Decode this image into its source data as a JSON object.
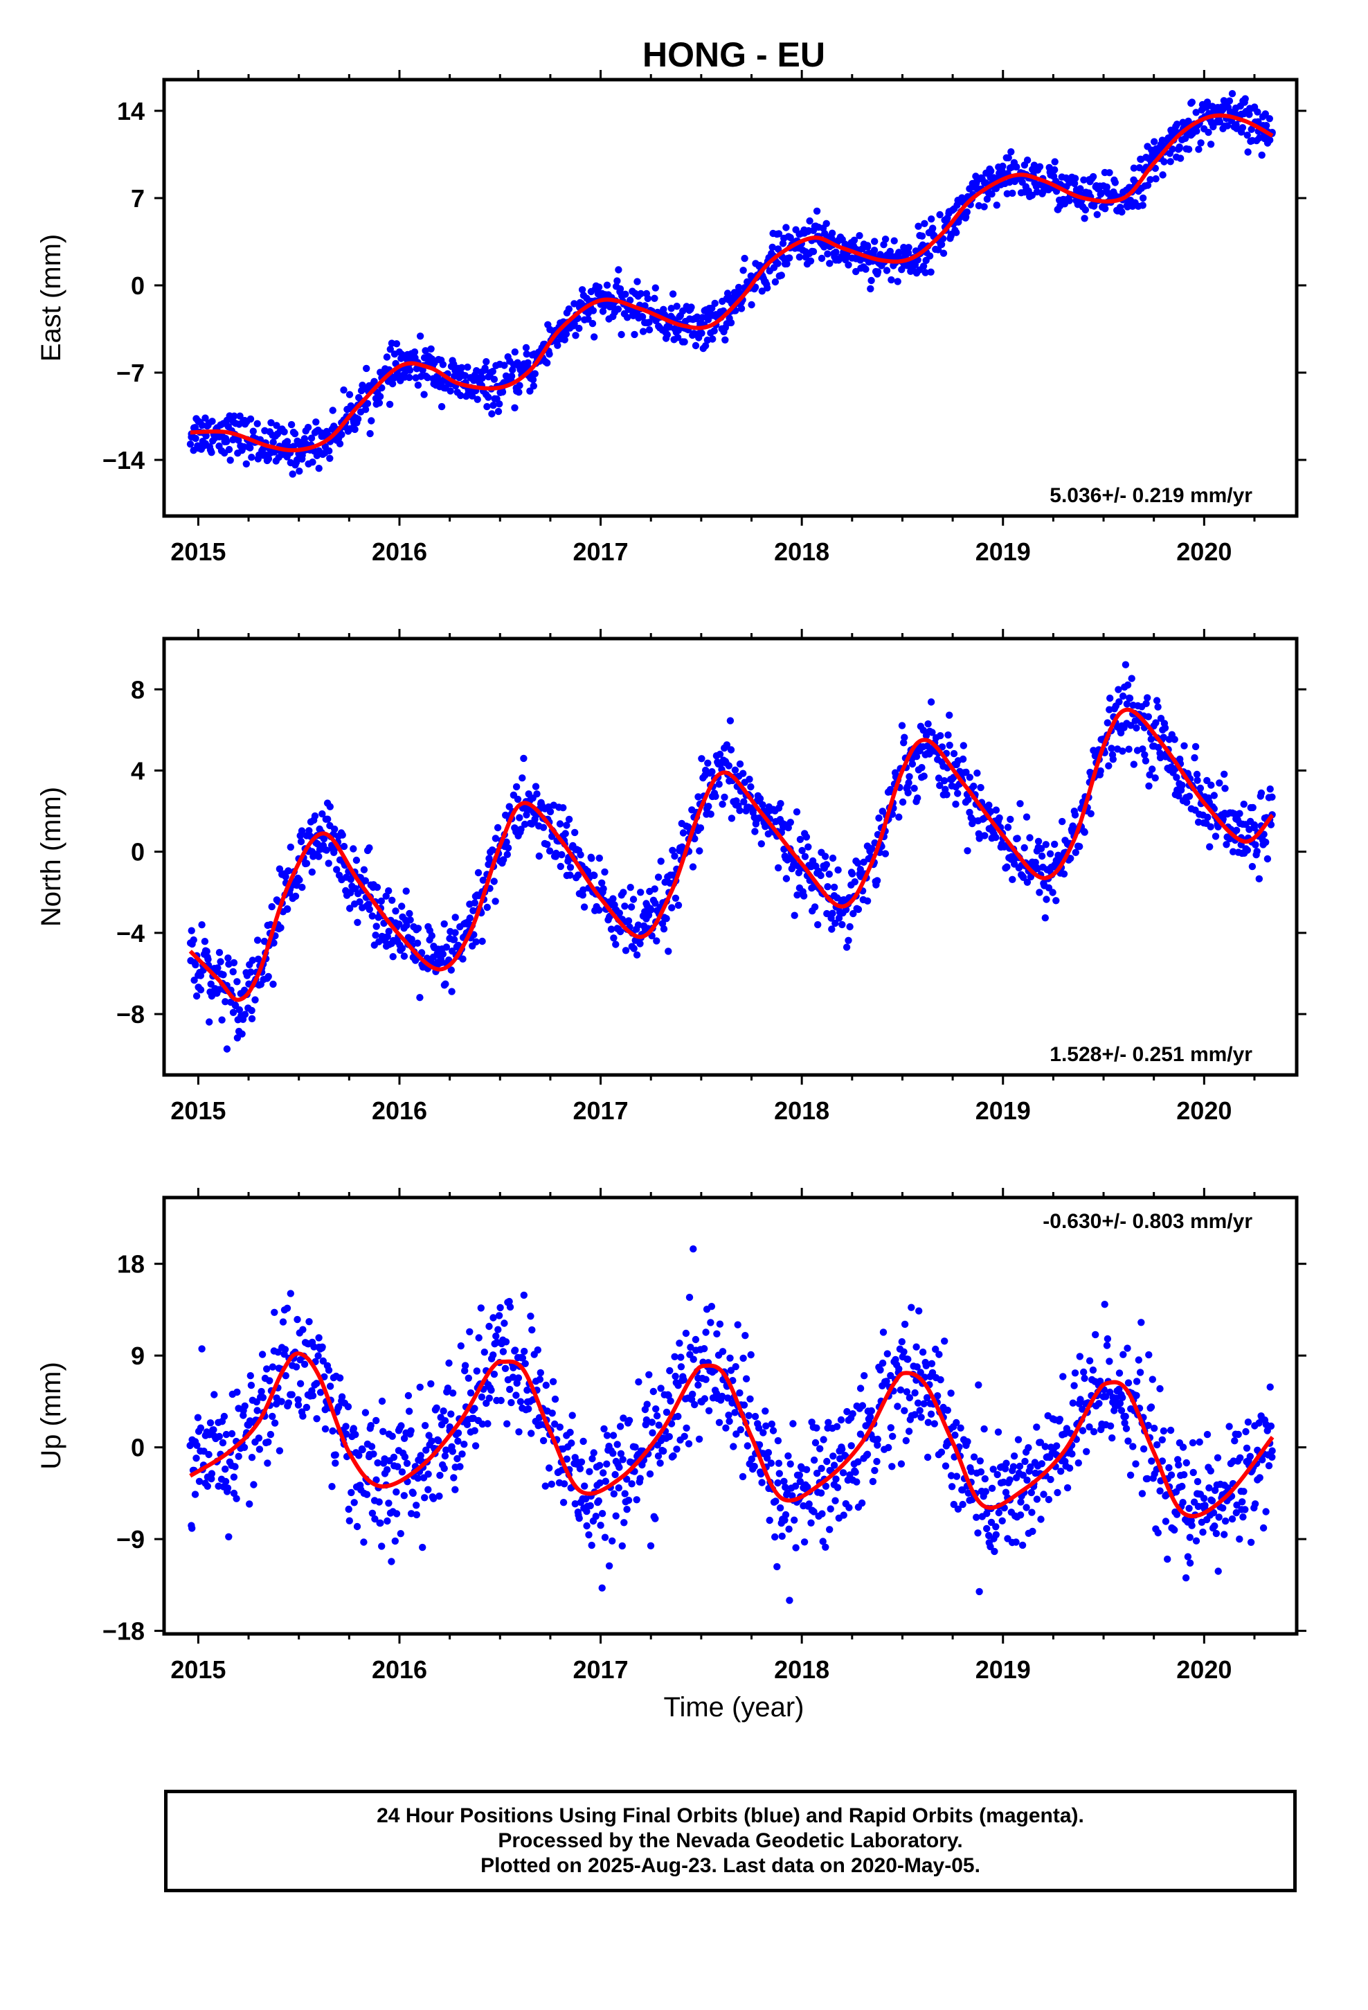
{
  "title": "HONG - EU",
  "x_axis_label": "Time (year)",
  "footer": {
    "line1": "24 Hour Positions Using Final Orbits (blue) and Rapid Orbits (magenta).",
    "line2": "Processed by the Nevada Geodetic Laboratory.",
    "line3": "Plotted on 2025-Aug-23. Last data on 2020-May-05."
  },
  "colors": {
    "points": "#0000ff",
    "fit": "#ff0000",
    "axes": "#000000"
  },
  "chart_data": [
    {
      "type": "scatter",
      "ylabel": "East (mm)",
      "xlim": [
        2014.83,
        2020.46
      ],
      "ylim": [
        -18.5,
        16.5
      ],
      "yticks": [
        -14,
        -7,
        0,
        7,
        14
      ],
      "xticks": [
        2015,
        2016,
        2017,
        2018,
        2019,
        2020
      ],
      "rate_label": "5.036+/- 0.219 mm/yr",
      "rate_position": "bottom-right",
      "x_range": [
        2014.96,
        2020.34
      ],
      "fit": {
        "x": [
          2014.96,
          2015.15,
          2015.35,
          2015.5,
          2015.65,
          2015.8,
          2016.0,
          2016.15,
          2016.3,
          2016.5,
          2016.65,
          2016.8,
          2017.0,
          2017.2,
          2017.4,
          2017.55,
          2017.7,
          2017.85,
          2018.05,
          2018.2,
          2018.4,
          2018.55,
          2018.7,
          2018.85,
          2019.05,
          2019.2,
          2019.4,
          2019.6,
          2019.75,
          2019.9,
          2020.05,
          2020.2,
          2020.34
        ],
        "y": [
          -11.8,
          -11.8,
          -12.9,
          -13.2,
          -12.3,
          -9.6,
          -6.5,
          -6.6,
          -7.9,
          -8.2,
          -6.8,
          -3.5,
          -1.2,
          -1.9,
          -3.2,
          -3.2,
          -1.0,
          2.0,
          3.8,
          3.0,
          2.0,
          2.2,
          4.2,
          7.0,
          8.8,
          8.4,
          7.0,
          7.0,
          9.8,
          12.4,
          13.6,
          13.2,
          12.0
        ]
      }
    },
    {
      "type": "scatter",
      "ylabel": "North (mm)",
      "xlim": [
        2014.83,
        2020.46
      ],
      "ylim": [
        -11.0,
        10.5
      ],
      "yticks": [
        -8,
        -4,
        0,
        4,
        8
      ],
      "xticks": [
        2015,
        2016,
        2017,
        2018,
        2019,
        2020
      ],
      "rate_label": "1.528+/- 0.251 mm/yr",
      "rate_position": "bottom-right",
      "x_range": [
        2014.96,
        2020.34
      ],
      "fit": {
        "x": [
          2014.96,
          2015.1,
          2015.2,
          2015.3,
          2015.45,
          2015.62,
          2015.8,
          2016.0,
          2016.2,
          2016.35,
          2016.5,
          2016.62,
          2016.8,
          2017.0,
          2017.2,
          2017.35,
          2017.5,
          2017.62,
          2017.8,
          2018.0,
          2018.2,
          2018.35,
          2018.5,
          2018.62,
          2018.8,
          2019.0,
          2019.2,
          2019.35,
          2019.5,
          2019.62,
          2019.8,
          2020.0,
          2020.2,
          2020.34
        ],
        "y": [
          -4.9,
          -6.3,
          -7.3,
          -6.0,
          -1.6,
          0.9,
          -1.5,
          -4.1,
          -5.8,
          -4.0,
          0.3,
          2.4,
          0.6,
          -2.3,
          -4.2,
          -2.0,
          2.2,
          3.9,
          1.9,
          -0.6,
          -2.7,
          -0.5,
          4.0,
          5.5,
          3.4,
          0.8,
          -1.3,
          0.5,
          5.2,
          7.0,
          5.2,
          2.4,
          0.5,
          1.8
        ]
      }
    },
    {
      "type": "scatter",
      "ylabel": "Up (mm)",
      "xlim": [
        2014.83,
        2020.46
      ],
      "ylim": [
        -18.3,
        24.5
      ],
      "yticks": [
        -18,
        -9,
        0,
        9,
        18
      ],
      "xticks": [
        2015,
        2016,
        2017,
        2018,
        2019,
        2020
      ],
      "rate_label": "-0.630+/- 0.803 mm/yr",
      "rate_position": "top-right",
      "x_range": [
        2014.96,
        2020.34
      ],
      "fit": {
        "x": [
          2014.96,
          2015.15,
          2015.3,
          2015.42,
          2015.5,
          2015.6,
          2015.75,
          2015.9,
          2016.1,
          2016.3,
          2016.45,
          2016.52,
          2016.62,
          2016.75,
          2016.9,
          2017.1,
          2017.3,
          2017.45,
          2017.52,
          2017.62,
          2017.75,
          2017.9,
          2018.1,
          2018.3,
          2018.45,
          2018.52,
          2018.62,
          2018.75,
          2018.9,
          2019.1,
          2019.3,
          2019.45,
          2019.52,
          2019.62,
          2019.75,
          2019.9,
          2020.1,
          2020.34
        ],
        "y": [
          -2.8,
          -0.5,
          2.5,
          7.5,
          9.2,
          7.0,
          -0.5,
          -3.8,
          -2.0,
          2.5,
          7.5,
          8.4,
          7.5,
          1.5,
          -4.3,
          -3.0,
          1.5,
          6.8,
          8.0,
          7.0,
          1.0,
          -5.0,
          -3.5,
          0.5,
          6.0,
          7.3,
          6.0,
          0.5,
          -5.7,
          -4.2,
          -0.5,
          4.8,
          6.3,
          5.5,
          -0.5,
          -6.5,
          -5.0,
          1.0
        ]
      }
    }
  ]
}
